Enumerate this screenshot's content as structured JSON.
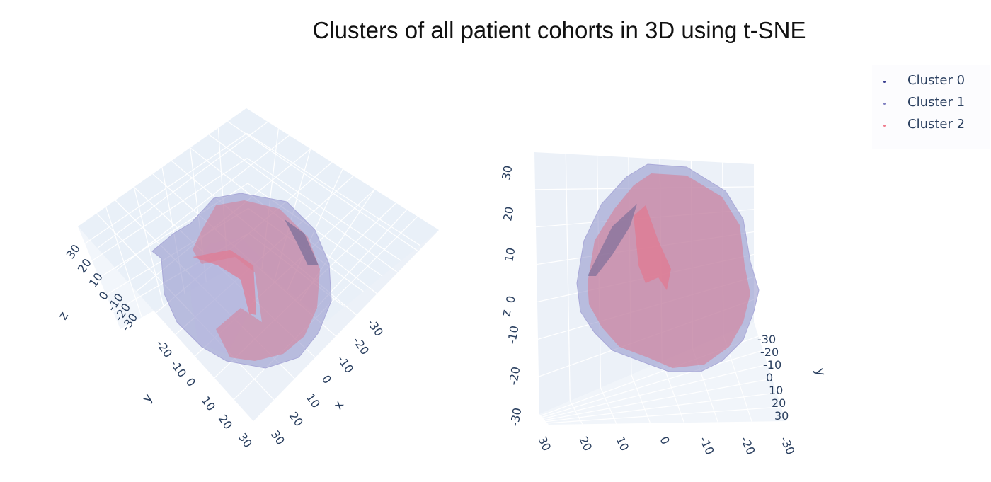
{
  "title": "Clusters of all patient cohorts in 3D using t-SNE",
  "legend": [
    {
      "label": "Cluster 0",
      "color": "#3b3f8f"
    },
    {
      "label": "Cluster 1",
      "color": "#7f7fc0"
    },
    {
      "label": "Cluster 2",
      "color": "#ef7b8c"
    }
  ],
  "colors": {
    "pane": "#e5ecf6",
    "grid": "#ffffff",
    "hull_blue": "#8e8fc8",
    "hull_red": "#d77e96",
    "text": "#2a3f5f"
  },
  "chart_data": [
    {
      "type": "scatter3d",
      "view": "top-down",
      "axes": {
        "x": {
          "label": "x",
          "ticks": [
            "-30",
            "-20",
            "-10",
            "0",
            "10",
            "20",
            "30"
          ]
        },
        "y": {
          "label": "y",
          "ticks": [
            "-20",
            "-10",
            "0",
            "10",
            "20",
            "30"
          ]
        },
        "z": {
          "label": "z",
          "ticks": [
            "30",
            "20",
            "10",
            "0",
            "-10",
            "-20",
            "-30"
          ]
        }
      },
      "series": [
        {
          "name": "Cluster 0",
          "render": "hull mesh"
        },
        {
          "name": "Cluster 1",
          "render": "hull mesh"
        },
        {
          "name": "Cluster 2",
          "render": "hull mesh"
        }
      ]
    },
    {
      "type": "scatter3d",
      "view": "side",
      "axes": {
        "x": {
          "label": "",
          "ticks": [
            "-30",
            "-20",
            "-10",
            "0",
            "10",
            "20",
            "30"
          ]
        },
        "y": {
          "label": "y",
          "ticks": [
            "-30",
            "-20",
            "-10",
            "0",
            "10",
            "20",
            "30"
          ]
        },
        "z": {
          "label": "z",
          "ticks": [
            "30",
            "20",
            "10",
            "0",
            "-10",
            "-20",
            "-30"
          ]
        }
      },
      "series": [
        {
          "name": "Cluster 0",
          "render": "hull mesh"
        },
        {
          "name": "Cluster 1",
          "render": "hull mesh"
        },
        {
          "name": "Cluster 2",
          "render": "hull mesh"
        }
      ]
    }
  ]
}
